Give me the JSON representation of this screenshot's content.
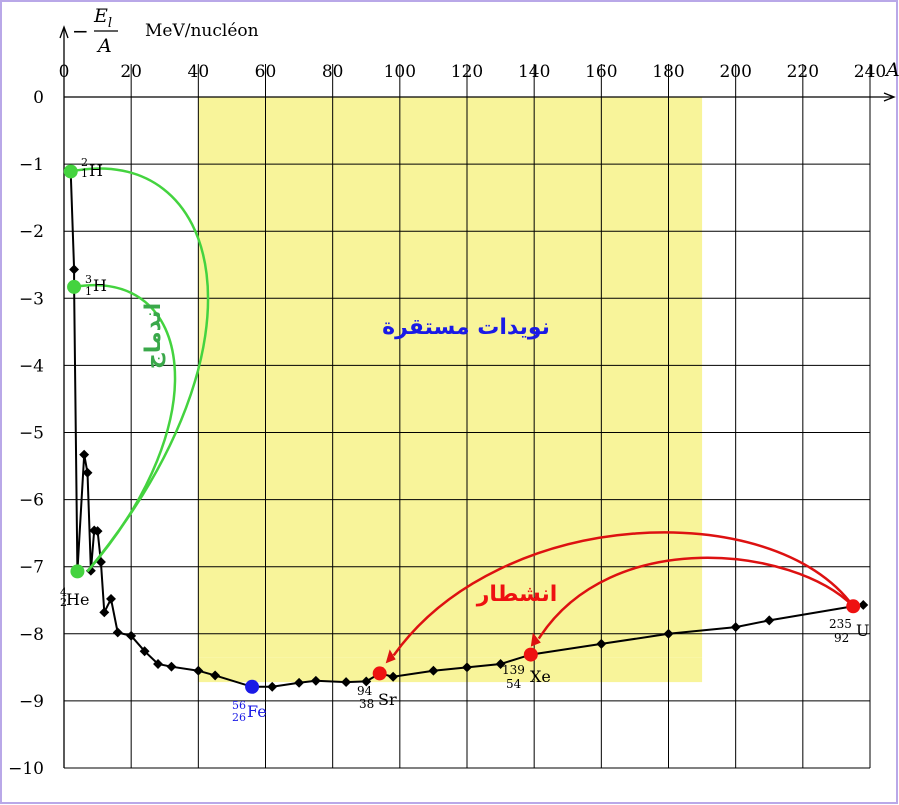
{
  "chart_data": {
    "type": "line",
    "title": "",
    "ylabel_numerator": "E",
    "ylabel_subscript": "l",
    "ylabel_denominator": "A",
    "ylabel_prefix": "−",
    "yunit": "MeV/nucléon",
    "xlabel": "A",
    "xlim": [
      0,
      240
    ],
    "ylim": [
      -10,
      0
    ],
    "xticks": [
      "0",
      "20",
      "40",
      "60",
      "80",
      "100",
      "120",
      "140",
      "160",
      "180",
      "200",
      "220",
      "240"
    ],
    "yticks": [
      "0",
      "−1",
      "−2",
      "−3",
      "−4",
      "−5",
      "−6",
      "−7",
      "−8",
      "−9",
      "−10"
    ],
    "stable_region": {
      "x_from": 40,
      "x_to": 190,
      "label": "نويدات مستقرة",
      "color": "#f8f49a"
    },
    "series": [
      {
        "points": [
          [
            2,
            -1.11
          ],
          [
            3,
            -2.57
          ],
          [
            3,
            -2.83
          ],
          [
            4,
            -7.07
          ],
          [
            6,
            -5.33
          ],
          [
            7,
            -5.6
          ],
          [
            8,
            -7.06
          ],
          [
            9,
            -6.46
          ],
          [
            10,
            -6.47
          ],
          [
            11,
            -6.93
          ],
          [
            12,
            -7.68
          ],
          [
            14,
            -7.48
          ],
          [
            16,
            -7.98
          ],
          [
            20,
            -8.03
          ],
          [
            24,
            -8.26
          ],
          [
            28,
            -8.45
          ],
          [
            32,
            -8.49
          ],
          [
            40,
            -8.55
          ],
          [
            45,
            -8.62
          ],
          [
            56,
            -8.79
          ],
          [
            62,
            -8.79
          ],
          [
            70,
            -8.73
          ],
          [
            75,
            -8.7
          ],
          [
            84,
            -8.72
          ],
          [
            90,
            -8.71
          ],
          [
            94,
            -8.59
          ],
          [
            98,
            -8.64
          ],
          [
            110,
            -8.55
          ],
          [
            120,
            -8.5
          ],
          [
            130,
            -8.45
          ],
          [
            139,
            -8.31
          ],
          [
            160,
            -8.15
          ],
          [
            180,
            -8.0
          ],
          [
            200,
            -7.9
          ],
          [
            210,
            -7.8
          ],
          [
            235,
            -7.59
          ],
          [
            238,
            -7.57
          ]
        ]
      }
    ],
    "highlighted": [
      {
        "label": "2/1H",
        "x": 2,
        "y": -1.11,
        "color": "#44d33f"
      },
      {
        "label": "3/1H",
        "x": 3,
        "y": -2.83,
        "color": "#44d33f"
      },
      {
        "label": "4/2He",
        "x": 4,
        "y": -7.07,
        "color": "#44d33f"
      },
      {
        "label": "56/26Fe",
        "x": 56,
        "y": -8.79,
        "color": "#1a1ae6"
      },
      {
        "label": "94/38Sr",
        "x": 94,
        "y": -8.59,
        "color": "#ee1111"
      },
      {
        "label": "139/54Xe",
        "x": 139,
        "y": -8.31,
        "color": "#ee1111"
      },
      {
        "label": "235/92U",
        "x": 235,
        "y": -7.59,
        "color": "#ee1111"
      }
    ],
    "annotations": {
      "fusion_label": "اندماج",
      "fission_label": "انشطار",
      "fusion_color": "#44d33f",
      "fission_color": "#dd1111"
    },
    "grid": true
  },
  "isotopes": {
    "h2": {
      "mass": "2",
      "z": "1",
      "sym": "H"
    },
    "h3": {
      "mass": "3",
      "z": "1",
      "sym": "H"
    },
    "he4": {
      "mass": "4",
      "z": "2",
      "sym": "He"
    },
    "fe": {
      "mass": "56",
      "z": "26",
      "sym": "Fe"
    },
    "sr": {
      "mass": "94",
      "z": "38",
      "sym": "Sr"
    },
    "xe": {
      "mass": "139",
      "z": "54",
      "sym": "Xe"
    },
    "u": {
      "mass": "235",
      "z": "92",
      "sym": "U"
    }
  },
  "colors": {
    "border": "#b9a8e8",
    "grid": "#000000",
    "curve": "#000000"
  }
}
